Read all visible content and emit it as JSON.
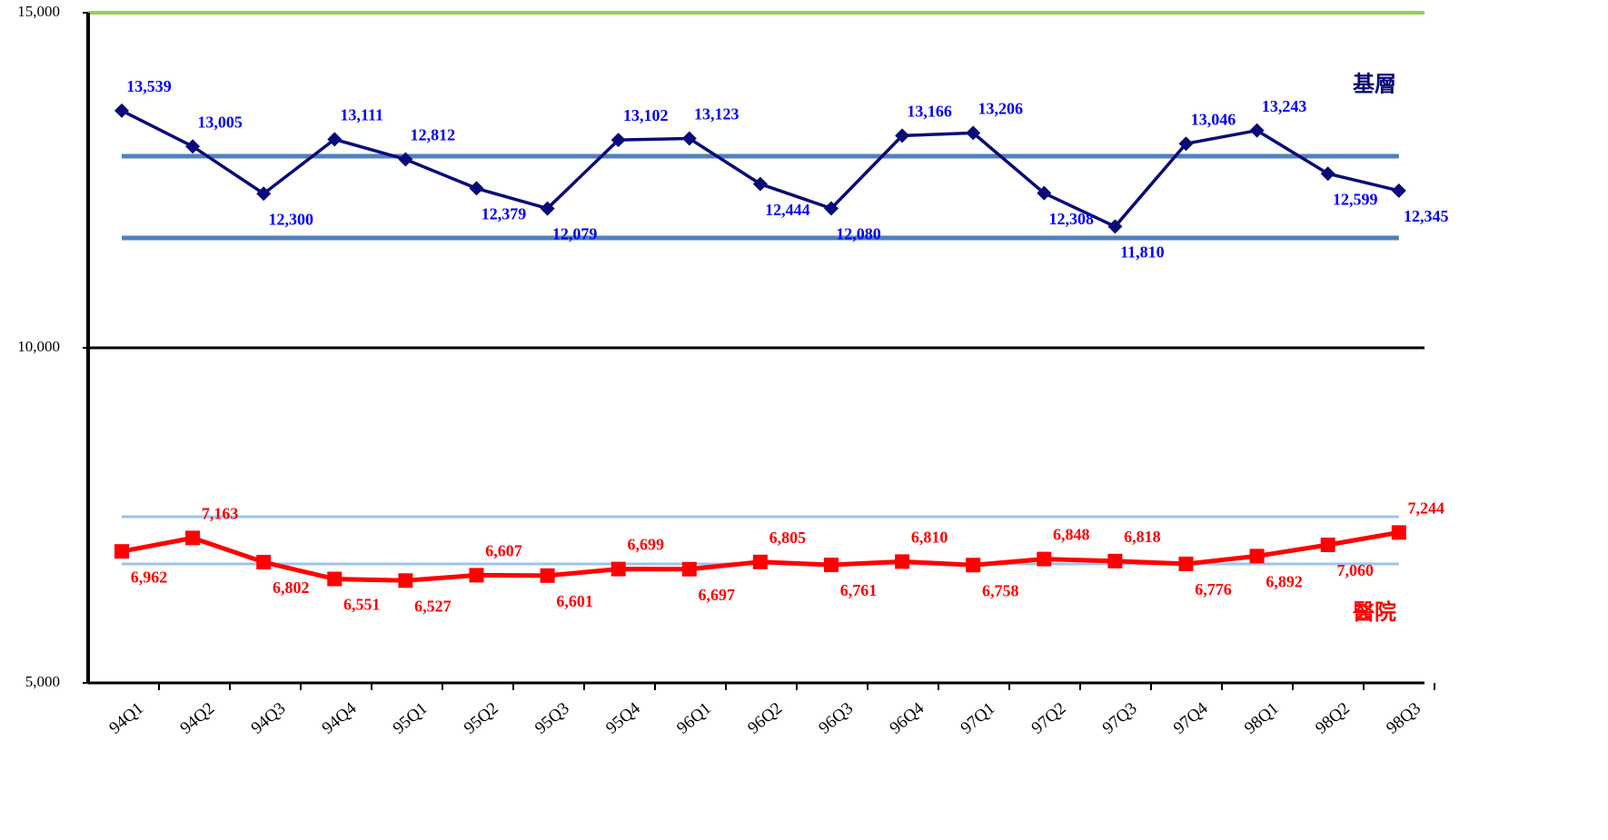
{
  "chart_data": {
    "type": "line",
    "categories": [
      "94Q1",
      "94Q2",
      "94Q3",
      "94Q4",
      "95Q1",
      "95Q2",
      "95Q3",
      "95Q4",
      "96Q1",
      "96Q2",
      "96Q3",
      "96Q4",
      "97Q1",
      "97Q2",
      "97Q3",
      "97Q4",
      "98Q1",
      "98Q2",
      "98Q3"
    ],
    "series": [
      {
        "name": "基層",
        "color": "#0a0a78",
        "label_color": "#0000ff",
        "marker": "diamond",
        "values": [
          13539,
          13005,
          12300,
          13111,
          12812,
          12379,
          12079,
          13102,
          13123,
          12444,
          12080,
          13166,
          13206,
          12308,
          11810,
          13046,
          13243,
          12599,
          12345
        ],
        "value_labels": [
          "13,539",
          "13,005",
          "12,300",
          "13,111",
          "12,812",
          "12,379",
          "12,079",
          "13,102",
          "13,123",
          "12,444",
          "12,080",
          "13,166",
          "13,206",
          "12,308",
          "11,810",
          "13,046",
          "13,243",
          "12,599",
          "12,345"
        ]
      },
      {
        "name": "醫院",
        "color": "#ff0000",
        "label_color": "#ff0000",
        "marker": "square",
        "values": [
          6962,
          7163,
          6802,
          6551,
          6527,
          6607,
          6601,
          6699,
          6697,
          6805,
          6761,
          6810,
          6758,
          6848,
          6818,
          6776,
          6892,
          7060,
          7244
        ],
        "value_labels": [
          "6,962",
          "7,163",
          "6,802",
          "6,551",
          "6,527",
          "6,607",
          "6,601",
          "6,699",
          "6,697",
          "6,805",
          "6,761",
          "6,810",
          "6,758",
          "6,848",
          "6,818",
          "6,776",
          "6,892",
          "7,060",
          "7,244"
        ]
      }
    ],
    "reference_lines": [
      {
        "value": 12859,
        "color": "#4f81bd"
      },
      {
        "value": 11640,
        "color": "#4f81bd"
      },
      {
        "value": 7480,
        "color": "#9cc3ee"
      },
      {
        "value": 6775,
        "color": "#9cc3ee"
      }
    ],
    "ylim": [
      5000,
      15000
    ],
    "yticks": [
      {
        "value": 5000,
        "label": "5,000"
      },
      {
        "value": 10000,
        "label": "10,000"
      },
      {
        "value": 15000,
        "label": "15,000"
      }
    ]
  }
}
